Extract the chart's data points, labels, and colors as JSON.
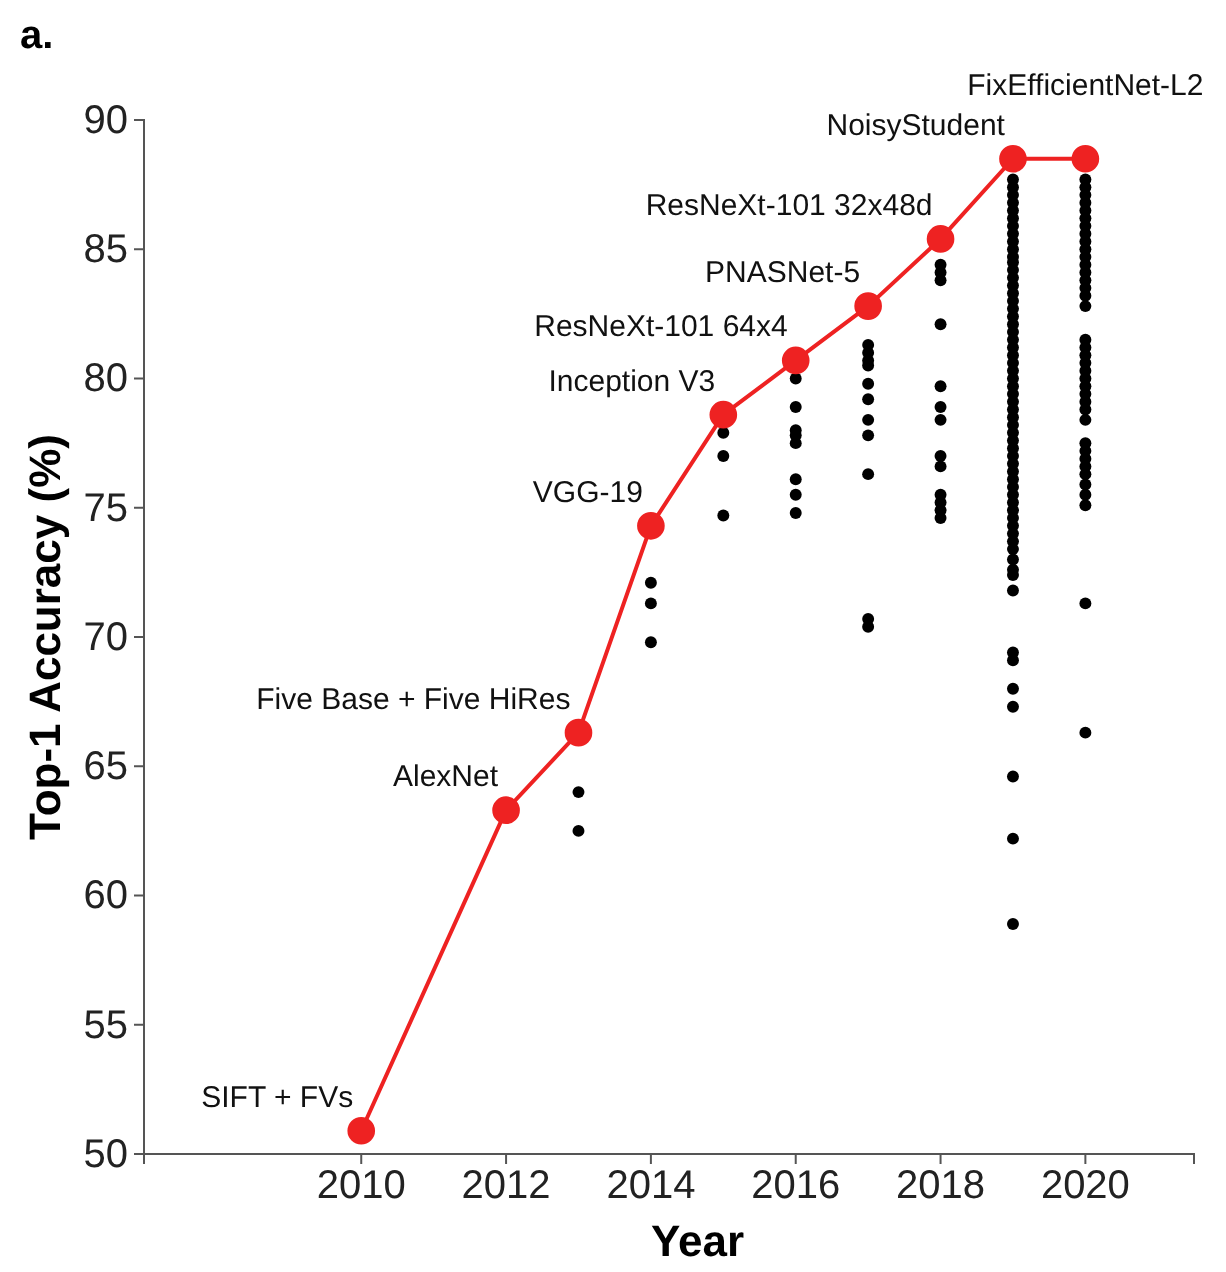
{
  "chart_data": {
    "type": "line",
    "title": "a.",
    "xlabel": "Year",
    "ylabel": "Top-1 Accuracy (%)",
    "xlim": [
      2007,
      2021.5
    ],
    "xticks": [
      2010,
      2012,
      2014,
      2016,
      2018,
      2020
    ],
    "ylim": [
      50,
      90
    ],
    "yticks": [
      50,
      55,
      60,
      65,
      70,
      75,
      80,
      85,
      90
    ],
    "grid": false,
    "marker": "circle",
    "line_style": "solid",
    "series": [
      {
        "type": "scatter",
        "color": "#000000",
        "x": [
          2013,
          2013,
          2014,
          2014,
          2014,
          2015,
          2015,
          2015,
          2016,
          2016,
          2016,
          2016,
          2016,
          2016,
          2016,
          2016,
          2017,
          2017,
          2017,
          2017,
          2017,
          2017,
          2017,
          2017,
          2017,
          2017,
          2017,
          2018,
          2018,
          2018,
          2018,
          2018,
          2018,
          2018,
          2018,
          2018,
          2018,
          2018,
          2018,
          2018,
          2019,
          2019,
          2019,
          2019,
          2019,
          2019,
          2019,
          2019,
          2019,
          2019,
          2019,
          2019,
          2019,
          2019,
          2019,
          2019,
          2019,
          2019,
          2019,
          2019,
          2019,
          2019,
          2019,
          2019,
          2019,
          2019,
          2019,
          2019,
          2019,
          2019,
          2019,
          2019,
          2019,
          2019,
          2019,
          2019,
          2019,
          2019,
          2019,
          2019,
          2019,
          2019,
          2019,
          2019,
          2019,
          2019,
          2019,
          2019,
          2019,
          2019,
          2019,
          2019,
          2019,
          2019,
          2019,
          2019,
          2019,
          2019,
          2019,
          2019,
          2020,
          2020,
          2020,
          2020,
          2020,
          2020,
          2020,
          2020,
          2020,
          2020,
          2020,
          2020,
          2020,
          2020,
          2020,
          2020,
          2020,
          2020,
          2020,
          2020,
          2020,
          2020,
          2020,
          2020,
          2020,
          2020,
          2020,
          2020,
          2020,
          2020,
          2020,
          2020,
          2020,
          2020,
          2020,
          2020,
          2020,
          2020
        ],
        "values": [
          64.0,
          62.5,
          72.1,
          71.3,
          69.8,
          77.9,
          77.0,
          74.7,
          80.0,
          78.9,
          78.0,
          77.8,
          77.5,
          76.1,
          75.5,
          74.8,
          81.3,
          81.0,
          80.7,
          80.5,
          79.8,
          79.2,
          78.4,
          77.8,
          76.3,
          70.7,
          70.4,
          84.4,
          84.1,
          83.8,
          82.1,
          79.7,
          78.9,
          78.4,
          77.0,
          76.6,
          75.5,
          75.2,
          74.9,
          74.6,
          87.7,
          87.4,
          87.1,
          86.8,
          86.5,
          86.2,
          85.9,
          85.6,
          85.3,
          85.0,
          84.7,
          84.5,
          84.2,
          83.9,
          83.6,
          83.3,
          83.0,
          82.7,
          82.4,
          82.1,
          81.8,
          81.5,
          81.2,
          80.9,
          80.6,
          80.3,
          80.0,
          79.7,
          79.4,
          79.1,
          78.8,
          78.5,
          78.2,
          77.9,
          77.6,
          77.3,
          77.0,
          76.7,
          76.4,
          76.1,
          75.8,
          75.5,
          75.2,
          74.9,
          74.6,
          74.3,
          74.0,
          73.7,
          73.4,
          73.0,
          72.6,
          72.4,
          71.8,
          69.4,
          69.1,
          68.0,
          67.3,
          64.6,
          62.2,
          58.9,
          87.7,
          87.4,
          87.1,
          86.8,
          86.5,
          86.2,
          85.9,
          85.6,
          85.3,
          85.0,
          84.7,
          84.4,
          84.1,
          83.8,
          83.5,
          83.2,
          82.8,
          81.5,
          81.2,
          80.9,
          80.6,
          80.3,
          80.0,
          79.7,
          79.4,
          79.1,
          78.8,
          78.4,
          77.5,
          77.2,
          76.9,
          76.6,
          76.3,
          75.9,
          75.5,
          75.1,
          71.3,
          66.3
        ]
      },
      {
        "type": "line",
        "color": "#ee2222",
        "x": [
          2010,
          2012,
          2013,
          2014,
          2015,
          2016,
          2017,
          2018,
          2019,
          2020
        ],
        "values": [
          50.9,
          63.3,
          66.3,
          74.3,
          78.6,
          80.7,
          82.8,
          85.4,
          88.5,
          88.5
        ]
      }
    ],
    "annotations": [
      {
        "text": "SIFT + FVs",
        "x": 2010,
        "y": 50.9
      },
      {
        "text": "AlexNet",
        "x": 2012,
        "y": 63.3
      },
      {
        "text": "Five Base + Five HiRes",
        "x": 2013,
        "y": 66.3
      },
      {
        "text": "VGG-19",
        "x": 2014,
        "y": 74.3
      },
      {
        "text": "Inception V3",
        "x": 2015,
        "y": 78.6
      },
      {
        "text": "ResNeXt-101 64x4",
        "x": 2016,
        "y": 80.7
      },
      {
        "text": "PNASNet-5",
        "x": 2017,
        "y": 82.8
      },
      {
        "text": "ResNeXt-101 32x48d",
        "x": 2018,
        "y": 85.4
      },
      {
        "text": "NoisyStudent",
        "x": 2019,
        "y": 88.5
      },
      {
        "text": "FixEfficientNet-L2",
        "x": 2020,
        "y": 88.5
      }
    ]
  }
}
